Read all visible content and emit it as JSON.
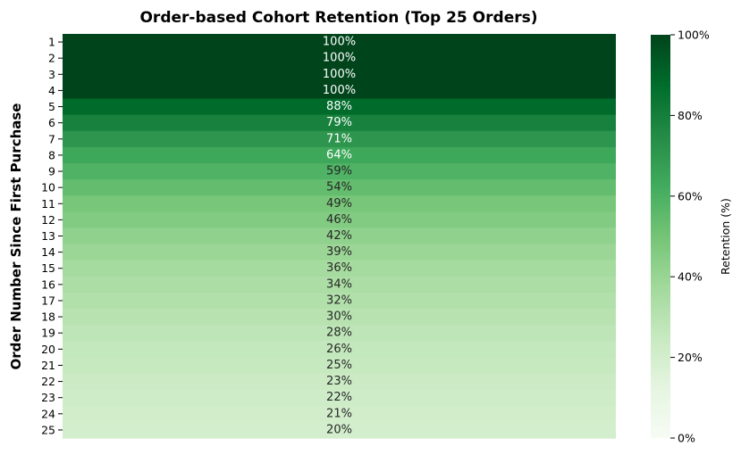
{
  "chart_data": {
    "type": "heatmap",
    "title": "Order-based Cohort Retention (Top 25 Orders)",
    "ylabel": "Order Number Since First Purchase",
    "xlabel": "",
    "rows": [
      "1",
      "2",
      "3",
      "4",
      "5",
      "6",
      "7",
      "8",
      "9",
      "10",
      "11",
      "12",
      "13",
      "14",
      "15",
      "16",
      "17",
      "18",
      "19",
      "20",
      "21",
      "22",
      "23",
      "24",
      "25"
    ],
    "values": [
      100,
      100,
      100,
      100,
      88,
      79,
      71,
      64,
      59,
      54,
      49,
      46,
      42,
      39,
      36,
      34,
      32,
      30,
      28,
      26,
      25,
      23,
      22,
      21,
      20
    ],
    "value_labels": [
      "100%",
      "100%",
      "100%",
      "100%",
      "88%",
      "79%",
      "71%",
      "64%",
      "59%",
      "54%",
      "49%",
      "46%",
      "42%",
      "39%",
      "36%",
      "34%",
      "32%",
      "30%",
      "28%",
      "26%",
      "25%",
      "23%",
      "22%",
      "21%",
      "20%"
    ],
    "colorbar": {
      "label": "Retention (%)",
      "range": [
        0,
        100
      ],
      "ticks": [
        0,
        20,
        40,
        60,
        80,
        100
      ],
      "tick_labels": [
        "0%",
        "20%",
        "40%",
        "60%",
        "80%",
        "100%"
      ],
      "colormap": "Greens"
    },
    "colors": {
      "greens_stops": [
        "#f7fcf5",
        "#e5f5e0",
        "#c7e9c0",
        "#a1d99b",
        "#74c476",
        "#41ab5d",
        "#238b45",
        "#006d2c",
        "#00441b"
      ]
    }
  }
}
